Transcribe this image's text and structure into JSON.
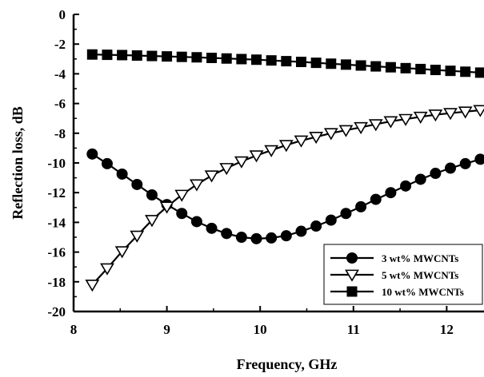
{
  "chart_data": {
    "type": "line",
    "title": "",
    "xlabel": "Frequency, GHz",
    "ylabel": "Reflection loss, dB",
    "xlim": [
      8,
      12.4
    ],
    "ylim": [
      -20,
      0
    ],
    "x_ticks": [
      "8",
      "9",
      "10",
      "11",
      "12"
    ],
    "y_ticks": [
      "0",
      "-2",
      "-4",
      "-6",
      "-8",
      "-10",
      "-12",
      "-14",
      "-16",
      "-18",
      "-20"
    ],
    "grid": false,
    "legend_position": "bottom-right",
    "series": [
      {
        "name": "3 wt% MWCNTs",
        "marker": "circle-filled",
        "x": [
          8.2,
          8.36,
          8.52,
          8.68,
          8.84,
          9.0,
          9.16,
          9.32,
          9.48,
          9.64,
          9.8,
          9.96,
          10.12,
          10.28,
          10.44,
          10.6,
          10.76,
          10.92,
          11.08,
          11.24,
          11.4,
          11.56,
          11.72,
          11.88,
          12.04,
          12.2,
          12.36
        ],
        "y": [
          -9.4,
          -10.05,
          -10.75,
          -11.45,
          -12.15,
          -12.8,
          -13.4,
          -13.95,
          -14.4,
          -14.75,
          -15.0,
          -15.1,
          -15.05,
          -14.9,
          -14.6,
          -14.25,
          -13.85,
          -13.4,
          -12.95,
          -12.45,
          -12.0,
          -11.55,
          -11.1,
          -10.7,
          -10.35,
          -10.05,
          -9.75
        ]
      },
      {
        "name": "5 wt% MWCNTs",
        "marker": "triangle-down-open",
        "x": [
          8.2,
          8.36,
          8.52,
          8.68,
          8.84,
          9.0,
          9.16,
          9.32,
          9.48,
          9.64,
          9.8,
          9.96,
          10.12,
          10.28,
          10.44,
          10.6,
          10.76,
          10.92,
          11.08,
          11.24,
          11.4,
          11.56,
          11.72,
          11.88,
          12.04,
          12.2,
          12.36
        ],
        "y": [
          -18.2,
          -17.1,
          -15.95,
          -14.9,
          -13.85,
          -12.95,
          -12.15,
          -11.45,
          -10.85,
          -10.35,
          -9.9,
          -9.5,
          -9.15,
          -8.8,
          -8.5,
          -8.25,
          -8.0,
          -7.8,
          -7.6,
          -7.4,
          -7.2,
          -7.05,
          -6.9,
          -6.75,
          -6.65,
          -6.55,
          -6.45
        ]
      },
      {
        "name": "10 wt% MWCNTs",
        "marker": "square-filled",
        "x": [
          8.2,
          8.36,
          8.52,
          8.68,
          8.84,
          9.0,
          9.16,
          9.32,
          9.48,
          9.64,
          9.8,
          9.96,
          10.12,
          10.28,
          10.44,
          10.6,
          10.76,
          10.92,
          11.08,
          11.24,
          11.4,
          11.56,
          11.72,
          11.88,
          12.04,
          12.2,
          12.36
        ],
        "y": [
          -2.7,
          -2.72,
          -2.74,
          -2.77,
          -2.8,
          -2.83,
          -2.86,
          -2.89,
          -2.93,
          -2.97,
          -3.01,
          -3.05,
          -3.1,
          -3.15,
          -3.2,
          -3.26,
          -3.32,
          -3.38,
          -3.44,
          -3.5,
          -3.56,
          -3.62,
          -3.68,
          -3.74,
          -3.8,
          -3.86,
          -3.92
        ]
      }
    ]
  }
}
